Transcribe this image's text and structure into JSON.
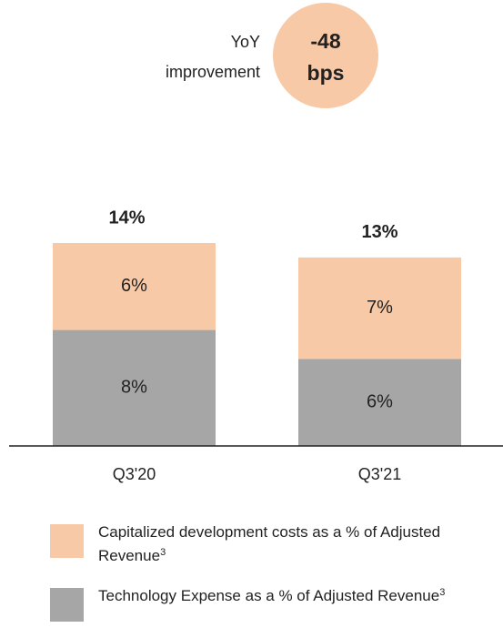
{
  "chart_data": {
    "type": "stacked_bar",
    "annotation": {
      "label_lines": [
        "YoY",
        "improvement"
      ],
      "value": -48,
      "unit": "bps",
      "color": "#f8c9a6"
    },
    "categories": [
      "Q3'20",
      "Q3'21"
    ],
    "series": [
      {
        "name": "Capitalized development costs as a % of Adjusted Revenue",
        "footnote": "3",
        "color": "#f8c9a6",
        "values": [
          6,
          7
        ],
        "value_labels": [
          "6%",
          "7%"
        ]
      },
      {
        "name": "Technology Expense as a % of Adjusted Revenue",
        "footnote": "3",
        "color": "#a6a6a6",
        "values": [
          8,
          6
        ],
        "value_labels": [
          "8%",
          "6%"
        ]
      }
    ],
    "totals": [
      14,
      13
    ],
    "total_labels": [
      "14%",
      "13%"
    ],
    "ylim": [
      0,
      14
    ],
    "legend": "bottom"
  }
}
